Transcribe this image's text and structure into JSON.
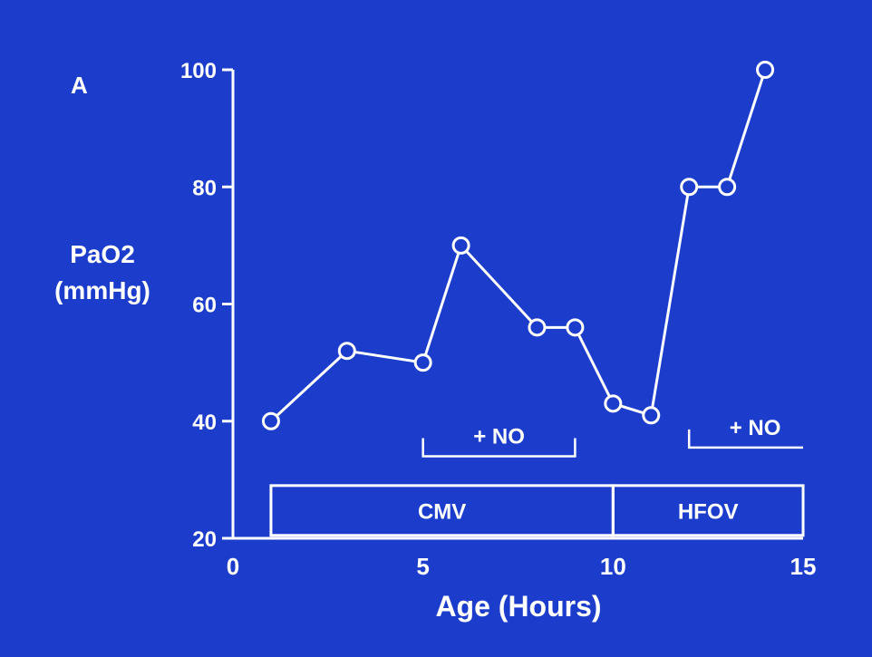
{
  "chart_data": {
    "type": "line",
    "panel_label": "A",
    "xlabel": "Age (Hours)",
    "ylabel": [
      "PaO2",
      "(mmHg)"
    ],
    "xlim": [
      0,
      15
    ],
    "ylim": [
      20,
      100
    ],
    "xticks": [
      0,
      5,
      10,
      15
    ],
    "yticks": [
      20,
      40,
      60,
      80,
      100
    ],
    "grid": false,
    "colors": {
      "background": "#1c3dcc",
      "foreground": "#ffffff"
    },
    "marker": "open-circle",
    "series": [
      {
        "x": [
          1,
          3,
          5,
          6,
          8,
          9,
          10,
          11,
          12,
          13,
          14
        ],
        "y": [
          40,
          52,
          50,
          70,
          56,
          56,
          43,
          41,
          80,
          80,
          100
        ]
      }
    ],
    "annotations": [
      {
        "text": "+ NO",
        "type": "bracket",
        "x_start": 5,
        "x_end": 9,
        "y": 34
      },
      {
        "text": "+ NO",
        "type": "bracket",
        "x_start": 12,
        "x_end": 15,
        "y": 35.5
      }
    ],
    "phases": [
      {
        "label": "CMV",
        "x_start": 1,
        "x_end": 10
      },
      {
        "label": "HFOV",
        "x_start": 10,
        "x_end": 15
      }
    ]
  }
}
